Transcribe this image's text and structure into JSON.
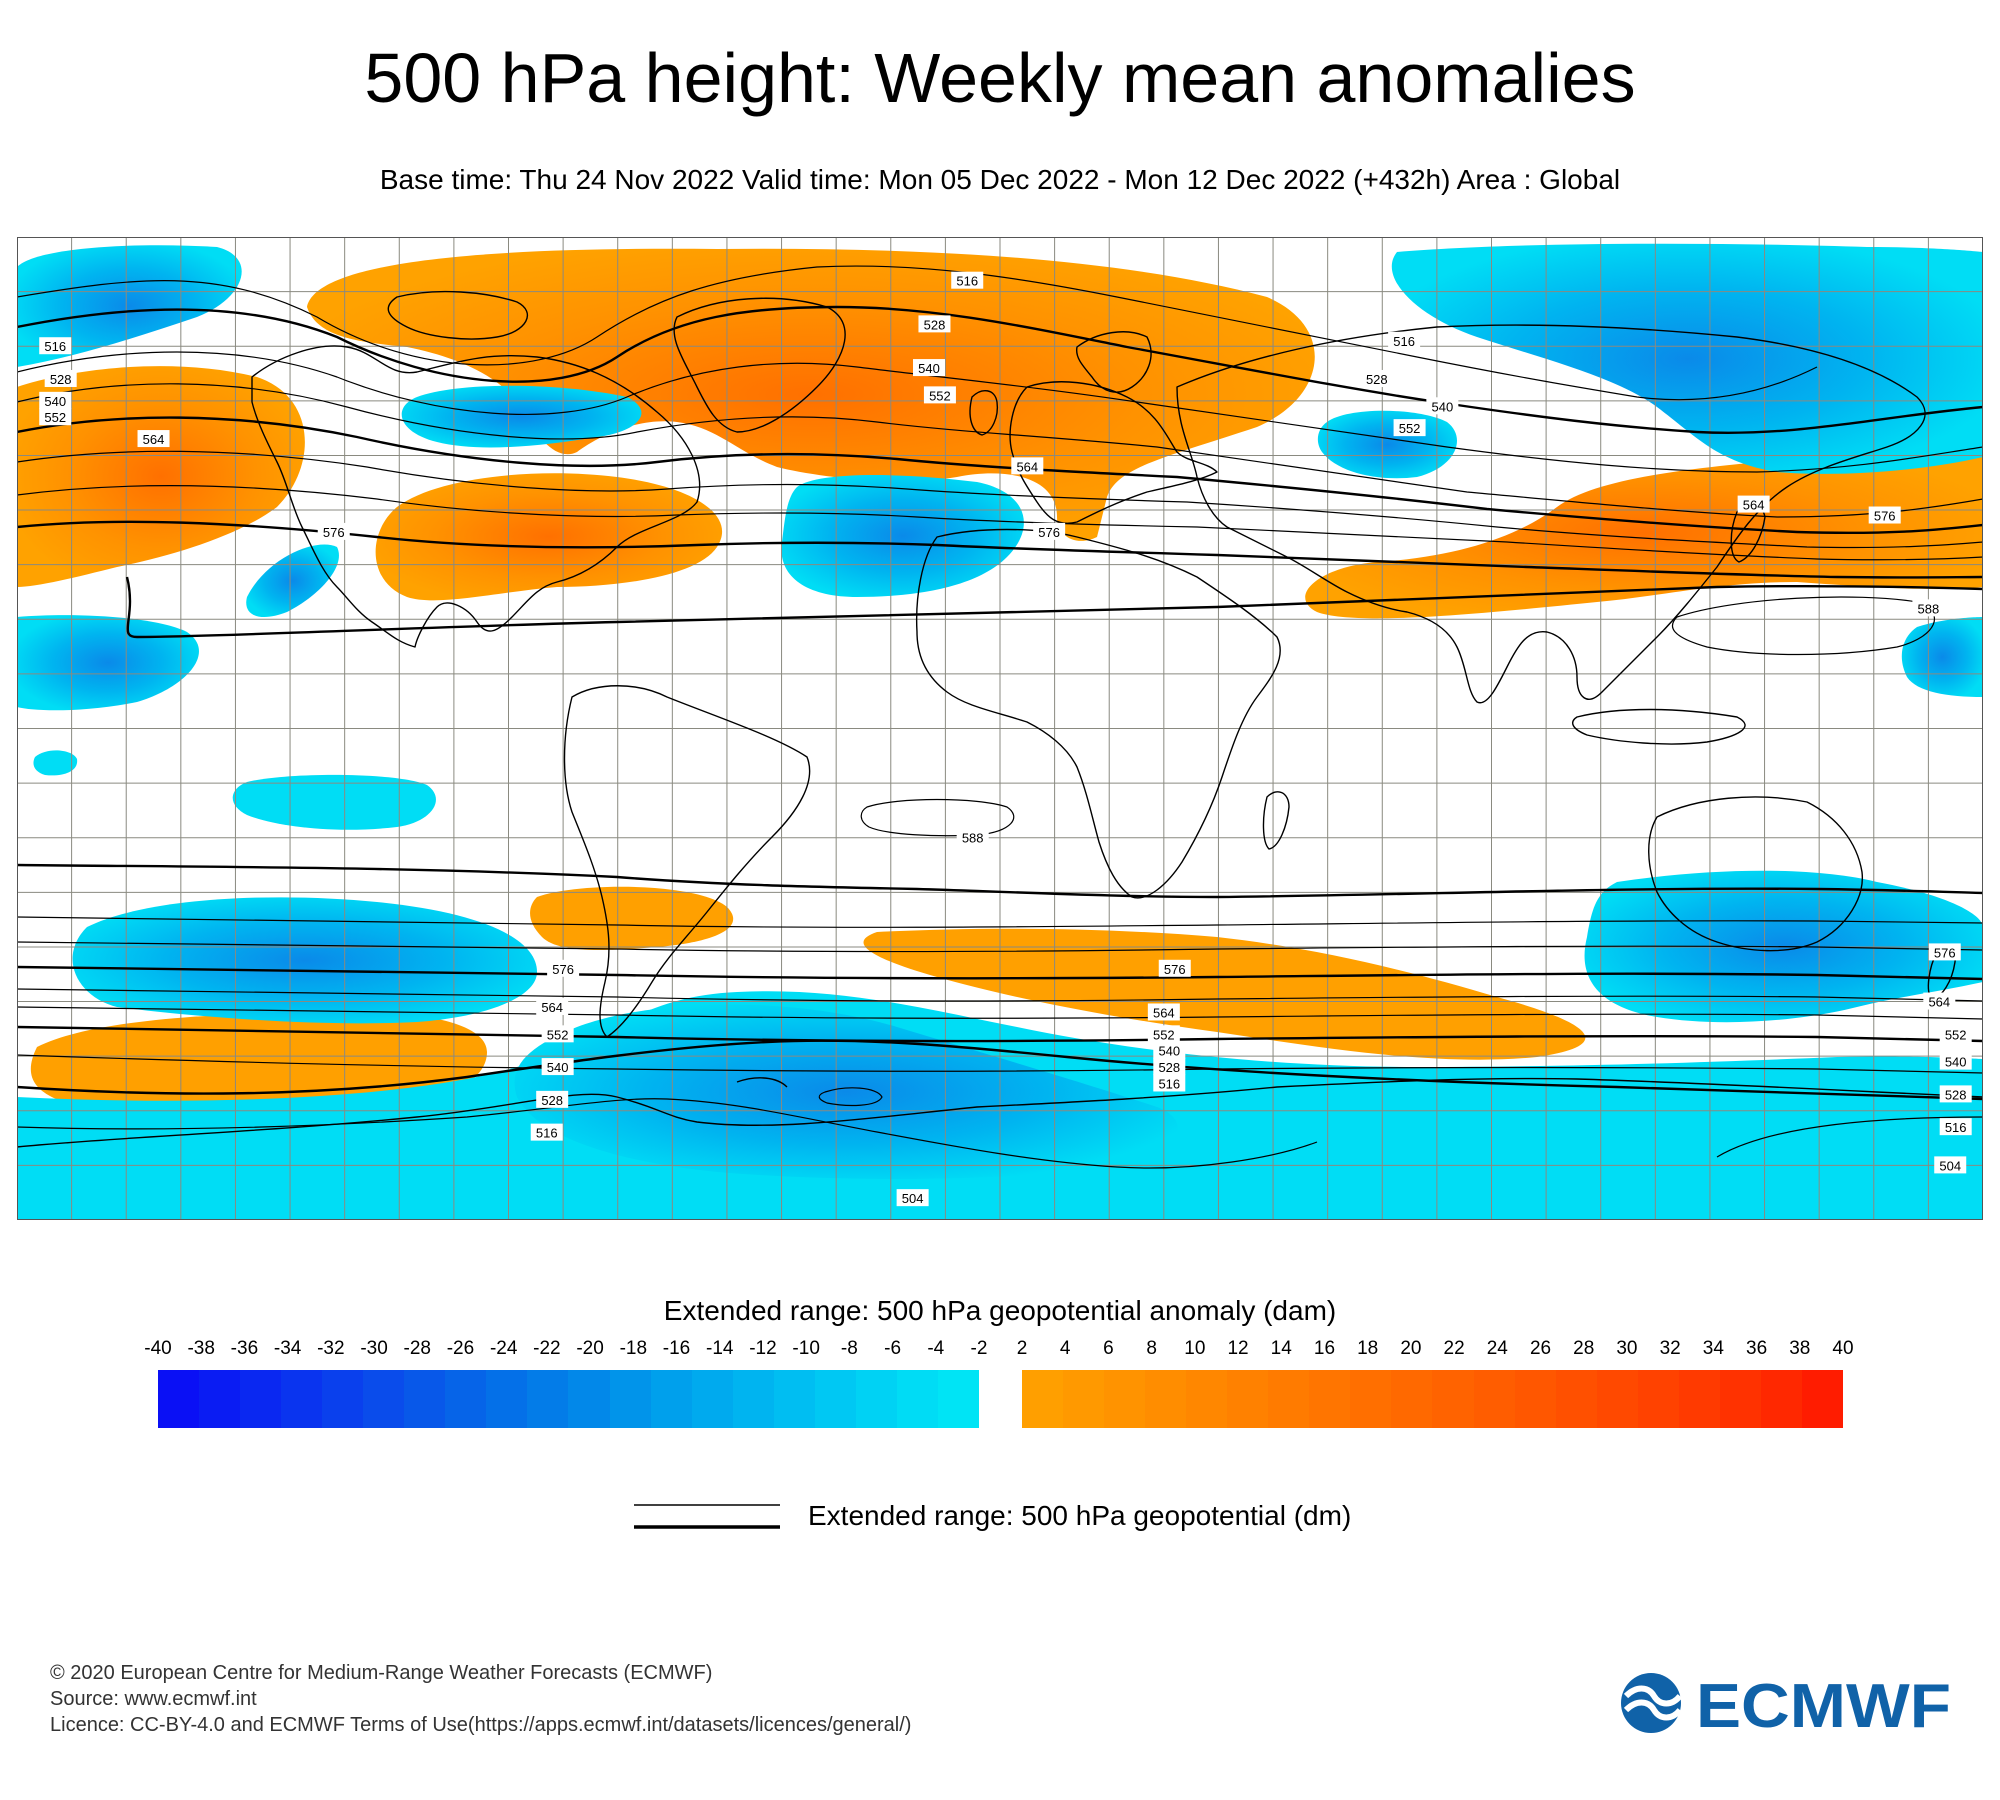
{
  "header": {
    "title": "500 hPa height: Weekly mean anomalies",
    "subtitle": "Base time: Thu 24 Nov 2022 Valid time: Mon 05 Dec 2022 - Mon 12 Dec 2022 (+432h) Area : Global"
  },
  "map": {
    "projection": "equirectangular",
    "area": "Global",
    "gridlines": true,
    "colors": {
      "ocean": "#ffffff",
      "coastline": "#000000",
      "grid": "#8a8a80",
      "anomaly_neg_light": "#00ddf5",
      "anomaly_neg_mid": "#00b4f0",
      "anomaly_neg_deep": "#0888ea",
      "anomaly_pos_light": "#ffa200",
      "anomaly_pos_mid": "#ff8c00",
      "anomaly_pos_deep": "#ff6a00"
    },
    "contour_labels": [
      {
        "text": "516",
        "lon": -6,
        "lat": 82
      },
      {
        "text": "528",
        "lon": -12,
        "lat": 74
      },
      {
        "text": "540",
        "lon": -13,
        "lat": 66
      },
      {
        "text": "552",
        "lon": -11,
        "lat": 61
      },
      {
        "text": "564",
        "lon": 5,
        "lat": 48
      },
      {
        "text": "576",
        "lon": 9,
        "lat": 36
      },
      {
        "text": "516",
        "lon": -173,
        "lat": 70
      },
      {
        "text": "528",
        "lon": -172,
        "lat": 64
      },
      {
        "text": "540",
        "lon": -173,
        "lat": 60
      },
      {
        "text": "552",
        "lon": -173,
        "lat": 57
      },
      {
        "text": "564",
        "lon": -155,
        "lat": 53
      },
      {
        "text": "576",
        "lon": -122,
        "lat": 36
      },
      {
        "text": "516",
        "lon": 74,
        "lat": 71
      },
      {
        "text": "528",
        "lon": 69,
        "lat": 64
      },
      {
        "text": "540",
        "lon": 81,
        "lat": 59
      },
      {
        "text": "552",
        "lon": 75,
        "lat": 55
      },
      {
        "text": "564",
        "lon": 138,
        "lat": 41
      },
      {
        "text": "576",
        "lon": 162,
        "lat": 39
      },
      {
        "text": "588",
        "lon": 170,
        "lat": 22
      },
      {
        "text": "588",
        "lon": -5,
        "lat": -20
      },
      {
        "text": "576",
        "lon": -80,
        "lat": -44
      },
      {
        "text": "564",
        "lon": -82,
        "lat": -51
      },
      {
        "text": "552",
        "lon": -81,
        "lat": -56
      },
      {
        "text": "540",
        "lon": -81,
        "lat": -62
      },
      {
        "text": "528",
        "lon": -82,
        "lat": -68
      },
      {
        "text": "516",
        "lon": -83,
        "lat": -74
      },
      {
        "text": "576",
        "lon": 32,
        "lat": -44
      },
      {
        "text": "564",
        "lon": 30,
        "lat": -52
      },
      {
        "text": "552",
        "lon": 30,
        "lat": -56
      },
      {
        "text": "540",
        "lon": 31,
        "lat": -59
      },
      {
        "text": "528",
        "lon": 31,
        "lat": -62
      },
      {
        "text": "516",
        "lon": 31,
        "lat": -65
      },
      {
        "text": "504",
        "lon": -16,
        "lat": -86
      },
      {
        "text": "576",
        "lon": 173,
        "lat": -41
      },
      {
        "text": "564",
        "lon": 172,
        "lat": -50
      },
      {
        "text": "552",
        "lon": 175,
        "lat": -56
      },
      {
        "text": "540",
        "lon": 175,
        "lat": -61
      },
      {
        "text": "528",
        "lon": 175,
        "lat": -67
      },
      {
        "text": "516",
        "lon": 175,
        "lat": -73
      },
      {
        "text": "504",
        "lon": 174,
        "lat": -80
      }
    ]
  },
  "legend": {
    "anomaly_title": "Extended range: 500 hPa geopotential anomaly (dam)",
    "negative_ticks": [
      "-40",
      "-38",
      "-36",
      "-34",
      "-32",
      "-30",
      "-28",
      "-26",
      "-24",
      "-22",
      "-20",
      "-18",
      "-16",
      "-14",
      "-12",
      "-10",
      "-8",
      "-6",
      "-4",
      "-2"
    ],
    "positive_ticks": [
      "2",
      "4",
      "6",
      "8",
      "10",
      "12",
      "14",
      "16",
      "18",
      "20",
      "22",
      "24",
      "26",
      "28",
      "30",
      "32",
      "34",
      "36",
      "38",
      "40"
    ],
    "negative_colors": [
      "#0a10f5",
      "#0a1cf3",
      "#0a28f1",
      "#0a34ef",
      "#0a40ed",
      "#0a4ceb",
      "#0858e9",
      "#0664e8",
      "#0470e8",
      "#037ce8",
      "#0288e9",
      "#0194ea",
      "#00a0ec",
      "#00aaee",
      "#00b4f0",
      "#00bef2",
      "#00c8f3",
      "#00d2f4",
      "#00dcf5",
      "#00e4f5"
    ],
    "positive_colors": [
      "#ff9f00",
      "#ff9900",
      "#ff9300",
      "#ff8d00",
      "#ff8700",
      "#ff8100",
      "#ff7b00",
      "#ff7500",
      "#ff6f00",
      "#ff6900",
      "#ff6300",
      "#ff5d00",
      "#ff5700",
      "#ff5000",
      "#ff4900",
      "#ff4200",
      "#ff3a00",
      "#ff3200",
      "#ff2800",
      "#ff1c00"
    ],
    "line_label": "Extended range: 500 hPa geopotential (dm)"
  },
  "footer": {
    "copyright": "© 2020 European Centre for Medium-Range Weather Forecasts (ECMWF)",
    "source": "Source: www.ecmwf.int",
    "licence": "Licence: CC-BY-4.0 and ECMWF Terms of Use(https://apps.ecmwf.int/datasets/licences/general/)",
    "logo_text": "ECMWF",
    "logo_color": "#1062a8"
  }
}
